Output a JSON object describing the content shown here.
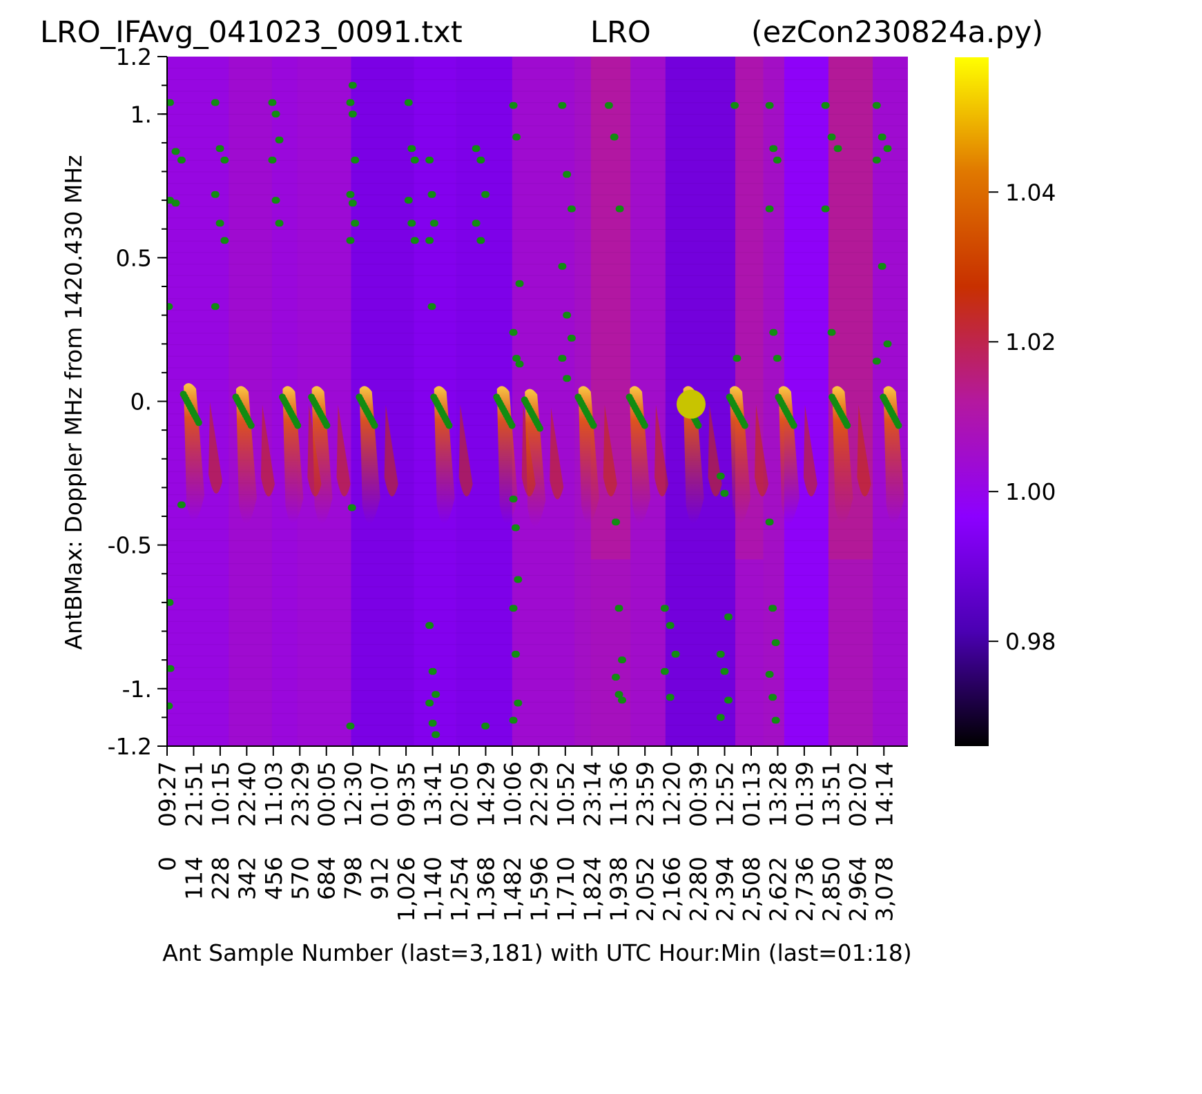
{
  "chart_data": {
    "type": "heatmap",
    "title_left": "LRO_IFAvg_041023_0091.txt",
    "title_center": "LRO",
    "title_right": "(ezCon230824a.py)",
    "xlabel": "Ant Sample Number (last=3,181) with UTC Hour:Min (last=01:18)",
    "ylabel": "AntBMax:  Doppler MHz from 1420.430 MHz",
    "xlim": [
      0,
      3181
    ],
    "ylim": [
      -1.2,
      1.2
    ],
    "y_ticks": [
      {
        "value": 1.2,
        "label": "1.2"
      },
      {
        "value": 1.0,
        "label": "1."
      },
      {
        "value": 0.5,
        "label": "0.5"
      },
      {
        "value": 0.0,
        "label": "0."
      },
      {
        "value": -0.5,
        "label": "-0.5"
      },
      {
        "value": -1.0,
        "label": "-1."
      },
      {
        "value": -1.2,
        "label": "-1.2"
      }
    ],
    "x_ticks": [
      {
        "value": 0,
        "sample": "0",
        "utc": "09:27"
      },
      {
        "value": 114,
        "sample": "114",
        "utc": "21:51"
      },
      {
        "value": 228,
        "sample": "228",
        "utc": "10:15"
      },
      {
        "value": 342,
        "sample": "342",
        "utc": "22:40"
      },
      {
        "value": 456,
        "sample": "456",
        "utc": "11:03"
      },
      {
        "value": 570,
        "sample": "570",
        "utc": "23:29"
      },
      {
        "value": 684,
        "sample": "684",
        "utc": "00:05"
      },
      {
        "value": 798,
        "sample": "798",
        "utc": "12:30"
      },
      {
        "value": 912,
        "sample": "912",
        "utc": "01:07"
      },
      {
        "value": 1026,
        "sample": "1,026",
        "utc": "09:35"
      },
      {
        "value": 1140,
        "sample": "1,140",
        "utc": "13:41"
      },
      {
        "value": 1254,
        "sample": "1,254",
        "utc": "02:05"
      },
      {
        "value": 1368,
        "sample": "1,368",
        "utc": "14:29"
      },
      {
        "value": 1482,
        "sample": "1,482",
        "utc": "10:06"
      },
      {
        "value": 1596,
        "sample": "1,596",
        "utc": "22:29"
      },
      {
        "value": 1710,
        "sample": "1,710",
        "utc": "10:52"
      },
      {
        "value": 1824,
        "sample": "1,824",
        "utc": "23:14"
      },
      {
        "value": 1938,
        "sample": "1,938",
        "utc": "11:36"
      },
      {
        "value": 2052,
        "sample": "2,052",
        "utc": "23:59"
      },
      {
        "value": 2166,
        "sample": "2,166",
        "utc": "12:20"
      },
      {
        "value": 2280,
        "sample": "2,280",
        "utc": "00:39"
      },
      {
        "value": 2394,
        "sample": "2,394",
        "utc": "12:52"
      },
      {
        "value": 2508,
        "sample": "2,508",
        "utc": "01:13"
      },
      {
        "value": 2622,
        "sample": "2,622",
        "utc": "13:28"
      },
      {
        "value": 2736,
        "sample": "2,736",
        "utc": "01:39"
      },
      {
        "value": 2850,
        "sample": "2,850",
        "utc": "13:51"
      },
      {
        "value": 2964,
        "sample": "2,964",
        "utc": "02:02"
      },
      {
        "value": 3078,
        "sample": "3,078",
        "utc": "14:14"
      }
    ],
    "colorbar": {
      "range": [
        0.966,
        1.058
      ],
      "ticks": [
        {
          "value": 0.98,
          "label": "0.98"
        },
        {
          "value": 1.0,
          "label": "1.00"
        },
        {
          "value": 1.02,
          "label": "1.02"
        },
        {
          "value": 1.04,
          "label": "1.04"
        }
      ],
      "colormap": [
        "#000000",
        "#4b00b3",
        "#8c00ff",
        "#b4189f",
        "#c83000",
        "#e07800",
        "#ffff00"
      ]
    },
    "colors": {
      "background": "#9a18c0",
      "band_warm": "#b02860",
      "band_hot": "#c03820",
      "band_cool": "#8a10f0",
      "ridge": "#e86000",
      "max_points": "#128c12",
      "highlight_marker": "#c8c400"
    },
    "background_bands": [
      {
        "x0": 0,
        "x1": 265,
        "level": 1.001
      },
      {
        "x0": 265,
        "x1": 450,
        "level": 1.004
      },
      {
        "x0": 450,
        "x1": 560,
        "level": 1.002
      },
      {
        "x0": 560,
        "x1": 790,
        "level": 1.003
      },
      {
        "x0": 790,
        "x1": 1060,
        "level": 0.992
      },
      {
        "x0": 1060,
        "x1": 1240,
        "level": 0.994
      },
      {
        "x0": 1240,
        "x1": 1482,
        "level": 0.993
      },
      {
        "x0": 1482,
        "x1": 1750,
        "level": 1.004
      },
      {
        "x0": 1750,
        "x1": 1820,
        "level": 1.006
      },
      {
        "x0": 1820,
        "x1": 1990,
        "level": 1.012
      },
      {
        "x0": 1990,
        "x1": 2140,
        "level": 1.005
      },
      {
        "x0": 2140,
        "x1": 2440,
        "level": 0.99
      },
      {
        "x0": 2440,
        "x1": 2560,
        "level": 1.01
      },
      {
        "x0": 2560,
        "x1": 2650,
        "level": 1.006
      },
      {
        "x0": 2650,
        "x1": 2840,
        "level": 0.997
      },
      {
        "x0": 2840,
        "x1": 3030,
        "level": 1.013
      },
      {
        "x0": 3030,
        "x1": 3181,
        "level": 1.004
      }
    ],
    "ridges": [
      {
        "x": 95,
        "y": 0.01
      },
      {
        "x": 320,
        "y": 0.0
      },
      {
        "x": 520,
        "y": 0.0
      },
      {
        "x": 645,
        "y": 0.0
      },
      {
        "x": 850,
        "y": 0.0
      },
      {
        "x": 1170,
        "y": 0.0
      },
      {
        "x": 1440,
        "y": 0.0
      },
      {
        "x": 1560,
        "y": -0.01
      },
      {
        "x": 1790,
        "y": 0.0
      },
      {
        "x": 2010,
        "y": 0.0
      },
      {
        "x": 2240,
        "y": 0.0
      },
      {
        "x": 2440,
        "y": 0.0
      },
      {
        "x": 2650,
        "y": 0.0
      },
      {
        "x": 2880,
        "y": 0.0
      },
      {
        "x": 3100,
        "y": 0.0
      }
    ],
    "highlight_point": {
      "x": 2250,
      "y": -0.01
    },
    "point_groups": [
      {
        "x0": 5,
        "x1": 80,
        "y": [
          1.04,
          0.87,
          0.84,
          0.7,
          0.69,
          -0.36
        ]
      },
      {
        "x0": 200,
        "x1": 260,
        "y": [
          1.04,
          0.88,
          0.84,
          0.72,
          0.62,
          0.56,
          0.33
        ]
      },
      {
        "x0": 445,
        "x1": 490,
        "y": [
          1.04,
          1.0,
          0.91,
          0.84,
          0.7,
          0.62
        ]
      },
      {
        "x0": 780,
        "x1": 810,
        "y": [
          1.04,
          1.0,
          0.84,
          0.72,
          0.69,
          0.62,
          0.56,
          1.1
        ]
      },
      {
        "x0": 1030,
        "x1": 1070,
        "y": [
          1.04,
          0.88,
          0.84,
          0.7,
          0.62,
          0.56
        ]
      },
      {
        "x0": 1120,
        "x1": 1150,
        "y": [
          0.84,
          0.72,
          0.62,
          0.56,
          0.33
        ]
      },
      {
        "x0": 1320,
        "x1": 1380,
        "y": [
          0.88,
          0.84,
          0.72,
          0.62,
          0.56
        ]
      },
      {
        "x0": 1480,
        "x1": 1520,
        "y": [
          1.03,
          0.92,
          0.41,
          0.24,
          0.15,
          0.13
        ]
      },
      {
        "x0": 1690,
        "x1": 1750,
        "y": [
          1.03,
          0.79,
          0.67,
          0.47,
          0.3,
          0.22,
          0.15,
          0.08
        ]
      },
      {
        "x0": 1890,
        "x1": 1960,
        "y": [
          1.03,
          0.92,
          0.67
        ]
      },
      {
        "x0": 2430,
        "x1": 2460,
        "y": [
          1.03,
          0.15
        ]
      },
      {
        "x0": 2580,
        "x1": 2630,
        "y": [
          1.03,
          0.88,
          0.84,
          0.67,
          0.24,
          0.15
        ]
      },
      {
        "x0": 2820,
        "x1": 2900,
        "y": [
          1.03,
          0.92,
          0.88,
          0.67,
          0.24
        ]
      },
      {
        "x0": 3040,
        "x1": 3110,
        "y": [
          1.03,
          0.92,
          0.88,
          0.84,
          0.47,
          0.2,
          0.14
        ]
      },
      {
        "x0": 1120,
        "x1": 1160,
        "y": [
          -0.78,
          -0.94,
          -1.02,
          -1.05,
          -1.12,
          -1.16
        ]
      },
      {
        "x0": 1480,
        "x1": 1510,
        "y": [
          -0.34,
          -0.44,
          -0.62,
          -0.72,
          -0.88,
          -1.05,
          -1.11
        ]
      },
      {
        "x0": 1920,
        "x1": 1960,
        "y": [
          -0.42,
          -0.72,
          -0.9,
          -0.96,
          -1.02,
          -1.04
        ]
      },
      {
        "x0": 2130,
        "x1": 2200,
        "y": [
          -0.72,
          -0.78,
          -0.88,
          -0.94,
          -1.03
        ]
      },
      {
        "x0": 2370,
        "x1": 2420,
        "y": [
          -0.26,
          -0.32,
          -0.75,
          -0.88,
          -0.94,
          -1.04,
          -1.1
        ]
      },
      {
        "x0": 2580,
        "x1": 2620,
        "y": [
          -0.42,
          -0.72,
          -0.84,
          -0.95,
          -1.03,
          -1.11
        ]
      },
      {
        "x0": 0,
        "x1": 10,
        "y": [
          0.33,
          -0.7,
          -0.93,
          -1.06
        ]
      },
      {
        "x0": 780,
        "x1": 800,
        "y": [
          -1.13,
          -0.37
        ]
      },
      {
        "x0": 1360,
        "x1": 1370,
        "y": [
          -1.13
        ]
      }
    ]
  }
}
